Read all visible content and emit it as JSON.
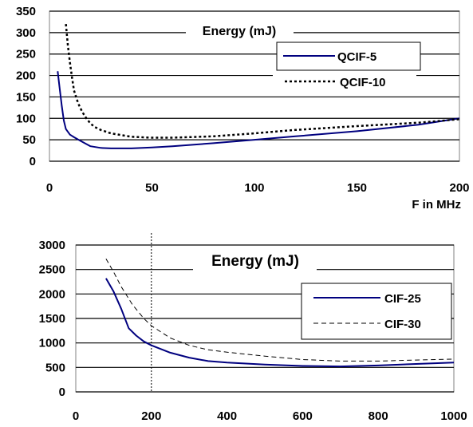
{
  "chart_data": [
    {
      "type": "line",
      "title": "Energy (mJ)",
      "xlabel": "F in MHz",
      "ylabel": "",
      "xlim": [
        0,
        200
      ],
      "ylim": [
        0,
        350
      ],
      "x_ticks": [
        0,
        50,
        100,
        150,
        200
      ],
      "y_ticks": [
        0,
        50,
        100,
        150,
        200,
        250,
        300,
        350
      ],
      "grid": "horizontal",
      "legend_position": "right",
      "series": [
        {
          "name": "QCIF-5",
          "style": "solid",
          "color": "#00007f",
          "x": [
            4,
            5,
            6,
            7,
            8,
            10,
            12,
            15,
            18,
            20,
            25,
            30,
            40,
            50,
            60,
            80,
            100,
            120,
            150,
            180,
            200
          ],
          "y": [
            210,
            170,
            130,
            95,
            75,
            62,
            56,
            48,
            40,
            35,
            31,
            30,
            30,
            32,
            35,
            42,
            50,
            58,
            70,
            85,
            100
          ]
        },
        {
          "name": "QCIF-10",
          "style": "dotted",
          "color": "#000000",
          "x": [
            8,
            9,
            10,
            11,
            12,
            14,
            16,
            18,
            20,
            22,
            25,
            30,
            40,
            50,
            60,
            80,
            100,
            120,
            150,
            180,
            200
          ],
          "y": [
            320,
            270,
            230,
            195,
            165,
            135,
            115,
            100,
            88,
            80,
            73,
            65,
            57,
            55,
            55,
            58,
            65,
            73,
            82,
            90,
            98
          ]
        }
      ]
    },
    {
      "type": "line",
      "title": "Energy (mJ)",
      "xlabel": "",
      "ylabel": "",
      "xlim": [
        0,
        1000
      ],
      "ylim": [
        0,
        3000
      ],
      "x_ticks": [
        0,
        200,
        400,
        600,
        800,
        1000
      ],
      "y_ticks": [
        0,
        500,
        1000,
        1500,
        2000,
        2500,
        3000
      ],
      "grid": "horizontal",
      "legend_position": "right",
      "vertical_marker": 200,
      "series": [
        {
          "name": "CIF-25",
          "style": "solid",
          "color": "#00007f",
          "x": [
            80,
            100,
            120,
            140,
            160,
            180,
            200,
            250,
            300,
            350,
            400,
            500,
            600,
            700,
            800,
            900,
            1000
          ],
          "y": [
            2320,
            2050,
            1700,
            1300,
            1150,
            1030,
            950,
            800,
            700,
            630,
            600,
            560,
            530,
            520,
            540,
            570,
            600
          ]
        },
        {
          "name": "CIF-30",
          "style": "dashed",
          "color": "#000000",
          "x": [
            80,
            100,
            120,
            150,
            180,
            200,
            250,
            300,
            350,
            400,
            500,
            600,
            700,
            800,
            900,
            1000
          ],
          "y": [
            2720,
            2450,
            2150,
            1780,
            1500,
            1350,
            1100,
            950,
            860,
            810,
            730,
            660,
            630,
            630,
            650,
            670
          ]
        }
      ]
    }
  ]
}
